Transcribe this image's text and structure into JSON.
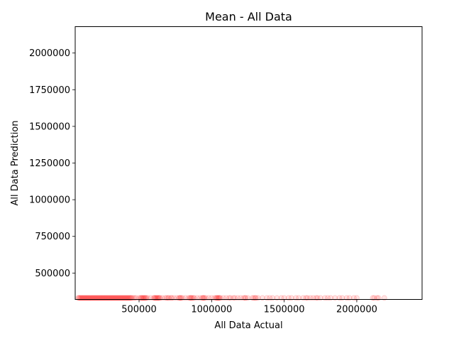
{
  "chart_data": {
    "type": "scatter",
    "title": "Mean - All Data",
    "xlabel": "All Data Actual",
    "ylabel": "All Data Prediction",
    "xlim": [
      60000,
      2450000
    ],
    "ylim": [
      320000,
      2180000
    ],
    "x_ticks": [
      500000,
      1000000,
      1500000,
      2000000
    ],
    "x_tick_labels": [
      "500000",
      "1000000",
      "1500000",
      "2000000"
    ],
    "y_ticks": [
      500000,
      750000,
      1000000,
      1250000,
      1500000,
      1750000,
      2000000
    ],
    "y_tick_labels": [
      "500000",
      "750000",
      "1000000",
      "1250000",
      "1500000",
      "1750000",
      "2000000"
    ],
    "grid": false,
    "marker_color": "#ff0000",
    "marker_alpha": 0.1,
    "series": [
      {
        "prediction": 330000,
        "x": [
          80000,
          90000,
          100000,
          110000,
          120000,
          130000,
          140000,
          150000,
          160000,
          170000,
          180000,
          190000,
          200000,
          210000,
          220000,
          230000,
          240000,
          250000,
          260000,
          270000,
          280000,
          290000,
          300000,
          310000,
          320000,
          330000,
          340000,
          350000,
          360000,
          370000,
          380000,
          390000,
          400000,
          410000,
          420000,
          430000,
          440000,
          450000,
          460000,
          470000,
          480000,
          500000,
          510000,
          520000,
          530000,
          540000,
          550000,
          560000,
          580000,
          600000,
          610000,
          620000,
          630000,
          640000,
          660000,
          680000,
          690000,
          700000,
          720000,
          740000,
          760000,
          780000,
          790000,
          800000,
          820000,
          840000,
          850000,
          860000,
          880000,
          900000,
          920000,
          940000,
          950000,
          960000,
          980000,
          1000000,
          1020000,
          1030000,
          1040000,
          1050000,
          1060000,
          1080000,
          1100000,
          1120000,
          1130000,
          1150000,
          1160000,
          1180000,
          1200000,
          1220000,
          1230000,
          1250000,
          1280000,
          1290000,
          1300000,
          1320000,
          1350000,
          1380000,
          1400000,
          1420000,
          1450000,
          1480000,
          1500000,
          1530000,
          1550000,
          1580000,
          1600000,
          1630000,
          1650000,
          1660000,
          1680000,
          1700000,
          1720000,
          1730000,
          1750000,
          1780000,
          1800000,
          1820000,
          1850000,
          1880000,
          1900000,
          1930000,
          1950000,
          1980000,
          2000000,
          2110000,
          2120000,
          2140000,
          2150000,
          2190000,
          85000,
          95000,
          105000,
          115000,
          125000,
          135000,
          145000,
          155000,
          165000,
          175000,
          185000,
          195000,
          205000,
          215000,
          225000,
          235000,
          245000,
          255000,
          265000,
          275000,
          285000,
          295000,
          305000,
          315000,
          325000,
          335000,
          345000,
          355000,
          365000,
          375000,
          385000,
          395000,
          405000,
          415000,
          425000,
          435000,
          445000,
          515000,
          525000,
          535000,
          545000,
          605000,
          615000,
          625000,
          635000,
          645000,
          705000,
          725000,
          775000,
          785000,
          855000,
          865000,
          875000,
          935000,
          945000,
          1035000,
          1045000,
          1055000,
          1235000,
          1305000
        ]
      }
    ]
  }
}
